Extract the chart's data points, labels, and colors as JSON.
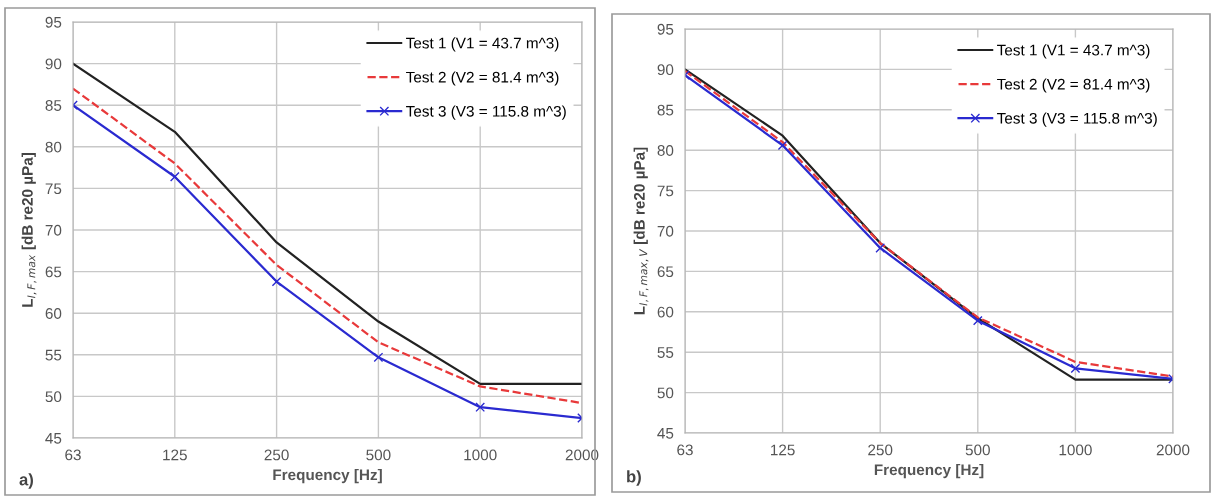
{
  "chart_data": [
    {
      "type": "line",
      "categories": [
        "63",
        "125",
        "250",
        "500",
        "1000",
        "2000"
      ],
      "xlabel": "Frequency [Hz]",
      "ylabel": "L$_{I,F,max}$ [dB re20 µPa]",
      "ylim": [
        45,
        95
      ],
      "yticks": [
        45,
        50,
        55,
        60,
        65,
        70,
        75,
        80,
        85,
        90,
        95
      ],
      "grid": true,
      "legend": "top right",
      "annotations": [
        "a)"
      ],
      "series": [
        {
          "name": "Test 1 (V1 = 43.7 m^3)",
          "color": "#222222",
          "line_style": "solid",
          "marker": "none",
          "values": [
            90,
            81.8,
            68.5,
            59,
            51.5,
            51.5
          ]
        },
        {
          "name": "Test 2 (V2 = 81.4 m^3)",
          "color": "#e8393a",
          "line_style": "dashed",
          "marker": "none",
          "values": [
            87,
            78,
            65.8,
            56.5,
            51.2,
            49.2
          ]
        },
        {
          "name": "Test 3 (V3 = 115.8 m^3)",
          "color": "#2a2ad0",
          "line_style": "solid",
          "marker": "cross",
          "values": [
            85,
            76.4,
            63.8,
            54.7,
            48.7,
            47.4
          ]
        }
      ]
    },
    {
      "type": "line",
      "categories": [
        "63",
        "125",
        "250",
        "500",
        "1000",
        "2000"
      ],
      "xlabel": "Frequency [Hz]",
      "ylabel": "L$_{I,F,max,V}$ [dB re20 µPa]",
      "ylim": [
        45,
        95
      ],
      "yticks": [
        45,
        50,
        55,
        60,
        65,
        70,
        75,
        80,
        85,
        90,
        95
      ],
      "grid": true,
      "legend": "top right",
      "annotations": [
        "b)"
      ],
      "series": [
        {
          "name": "Test 1 (V1 = 43.7 m^3)",
          "color": "#222222",
          "line_style": "solid",
          "marker": "none",
          "values": [
            90,
            81.8,
            68.5,
            59.2,
            51.6,
            51.6
          ]
        },
        {
          "name": "Test 2 (V2 = 81.4 m^3)",
          "color": "#e8393a",
          "line_style": "dashed",
          "marker": "none",
          "values": [
            89.8,
            81,
            68.5,
            59.3,
            53.8,
            52
          ]
        },
        {
          "name": "Test 3 (V3 = 115.8 m^3)",
          "color": "#2a2ad0",
          "line_style": "solid",
          "marker": "cross",
          "values": [
            89.3,
            80.6,
            67.9,
            58.9,
            53,
            51.7
          ]
        }
      ]
    }
  ]
}
